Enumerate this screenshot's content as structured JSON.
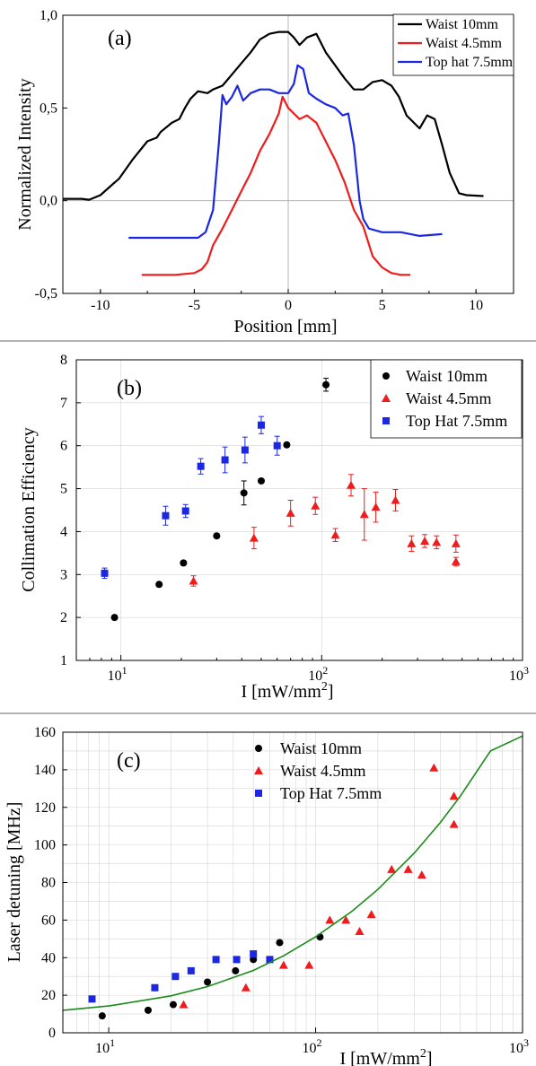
{
  "colors": {
    "black": "#000000",
    "red": "#ee1c1c",
    "blue": "#1b27e0",
    "green": "#1a8a1a"
  },
  "chart_data": [
    {
      "type": "line",
      "panel_label": "(a)",
      "xlabel": "Position [mm]",
      "ylabel": "Normalized Intensity",
      "xlim": [
        -12,
        12
      ],
      "ylim": [
        -0.5,
        1.0
      ],
      "xticks": [
        -10,
        -5,
        0,
        5,
        10
      ],
      "xtick_labels": [
        "-10",
        "-5",
        "0",
        "5",
        "10"
      ],
      "yticks": [
        -0.5,
        0.0,
        0.5,
        1.0
      ],
      "ytick_labels": [
        "-0,5",
        "0,0",
        "0,5",
        "1,0"
      ],
      "legend_position": "top-right",
      "series": [
        {
          "name": "Waist 10mm",
          "color": "#000000",
          "x": [
            -12,
            -11,
            -10.6,
            -10,
            -9,
            -8.3,
            -7.5,
            -7,
            -6.8,
            -6.2,
            -5.8,
            -5.5,
            -5.2,
            -4.8,
            -4.3,
            -4,
            -3.5,
            -3,
            -2.5,
            -2,
            -1.5,
            -1,
            -0.5,
            0,
            0.3,
            0.6,
            1,
            1.5,
            2,
            2.5,
            3,
            3.5,
            4,
            4.5,
            5,
            5.5,
            5.9,
            6.3,
            6.7,
            7,
            7.4,
            7.8,
            8.2,
            8.6,
            9.1,
            9.5,
            10.4
          ],
          "y": [
            0.01,
            0.01,
            0.005,
            0.03,
            0.12,
            0.22,
            0.32,
            0.34,
            0.37,
            0.42,
            0.44,
            0.5,
            0.55,
            0.59,
            0.58,
            0.6,
            0.62,
            0.68,
            0.74,
            0.8,
            0.87,
            0.9,
            0.91,
            0.91,
            0.88,
            0.84,
            0.88,
            0.9,
            0.8,
            0.73,
            0.66,
            0.6,
            0.6,
            0.64,
            0.65,
            0.62,
            0.56,
            0.46,
            0.42,
            0.39,
            0.46,
            0.44,
            0.3,
            0.15,
            0.04,
            0.03,
            0.025
          ]
        },
        {
          "name": "Waist 4.5mm",
          "color": "#ee1c1c",
          "x": [
            -7.8,
            -6,
            -5,
            -4.6,
            -4.3,
            -4,
            -3.5,
            -3,
            -2.5,
            -2,
            -1.5,
            -1,
            -0.5,
            -0.3,
            0,
            0.3,
            0.6,
            1,
            1.5,
            2,
            2.5,
            3,
            3.5,
            4,
            4.5,
            5,
            5.5,
            6,
            6.5
          ],
          "y": [
            -0.4,
            -0.4,
            -0.39,
            -0.37,
            -0.33,
            -0.24,
            -0.15,
            -0.05,
            0.05,
            0.15,
            0.27,
            0.36,
            0.47,
            0.56,
            0.5,
            0.47,
            0.44,
            0.46,
            0.42,
            0.32,
            0.22,
            0.1,
            -0.05,
            -0.14,
            -0.3,
            -0.36,
            -0.39,
            -0.4,
            -0.4
          ]
        },
        {
          "name": "Top hat 7.5mm",
          "color": "#1b27e0",
          "x": [
            -8.5,
            -4.8,
            -4.4,
            -4,
            -3.7,
            -3.5,
            -3.3,
            -3.0,
            -2.7,
            -2.4,
            -2.0,
            -1.5,
            -1.0,
            -0.5,
            0,
            0.3,
            0.5,
            0.8,
            1.1,
            1.5,
            2.0,
            2.5,
            2.9,
            3.2,
            3.5,
            3.8,
            4.0,
            4.3,
            5,
            6,
            7,
            8.2
          ],
          "y": [
            -0.2,
            -0.2,
            -0.17,
            -0.05,
            0.3,
            0.57,
            0.52,
            0.56,
            0.62,
            0.54,
            0.58,
            0.6,
            0.6,
            0.58,
            0.58,
            0.63,
            0.73,
            0.71,
            0.58,
            0.55,
            0.52,
            0.5,
            0.46,
            0.47,
            0.3,
            0.0,
            -0.1,
            -0.15,
            -0.17,
            -0.17,
            -0.19,
            -0.18
          ]
        }
      ]
    },
    {
      "type": "scatter",
      "panel_label": "(b)",
      "xlabel_base": "I [mW/mm",
      "xlabel_sup": "2",
      "xlabel_end": "]",
      "ylabel": "Collimation Efficiency",
      "xscale": "log",
      "xlim": [
        6,
        1000
      ],
      "ylim": [
        1,
        8
      ],
      "xticks": [
        10,
        100,
        1000
      ],
      "xtick_base": "10",
      "xtick_exps": [
        "1",
        "2",
        "3"
      ],
      "yticks": [
        1,
        2,
        3,
        4,
        5,
        6,
        7,
        8
      ],
      "ytick_labels": [
        "1",
        "2",
        "3",
        "4",
        "5",
        "6",
        "7",
        "8"
      ],
      "legend_position": "top-right",
      "series": [
        {
          "name": "Waist 10mm",
          "marker": "circle",
          "color": "#000000",
          "x": [
            9.3,
            15.5,
            20.5,
            30,
            41,
            50,
            67,
            105
          ],
          "y": [
            2.0,
            2.77,
            3.27,
            3.9,
            4.9,
            5.18,
            6.02,
            7.42
          ],
          "err": [
            0.05,
            0.05,
            0.05,
            0.05,
            0.28,
            0.05,
            0.05,
            0.15
          ]
        },
        {
          "name": "Waist 4.5mm",
          "marker": "triangle",
          "color": "#ee1c1c",
          "x": [
            23,
            46,
            70,
            93,
            117,
            140,
            163,
            186,
            233,
            280,
            326,
            373,
            466,
            466
          ],
          "y": [
            2.85,
            3.85,
            4.43,
            4.6,
            3.92,
            5.08,
            4.4,
            4.57,
            4.73,
            3.72,
            3.78,
            3.75,
            3.3,
            3.72
          ],
          "err": [
            0.12,
            0.25,
            0.3,
            0.2,
            0.15,
            0.25,
            0.6,
            0.35,
            0.25,
            0.18,
            0.15,
            0.15,
            0.1,
            0.2
          ]
        },
        {
          "name": "Top Hat 7.5mm",
          "marker": "square",
          "color": "#1b27e0",
          "x": [
            8.3,
            16.7,
            21,
            25,
            33,
            41.5,
            50,
            60
          ],
          "y": [
            3.03,
            4.37,
            4.48,
            5.52,
            5.67,
            5.9,
            6.48,
            6.0
          ],
          "err": [
            0.12,
            0.22,
            0.15,
            0.18,
            0.3,
            0.3,
            0.2,
            0.22
          ]
        }
      ]
    },
    {
      "type": "scatter",
      "panel_label": "(c)",
      "xlabel_base": "I [mW/mm",
      "xlabel_sup": "2",
      "xlabel_end": "]",
      "ylabel": "Laser detuning [MHz]",
      "xscale": "log",
      "xlim": [
        6,
        1000
      ],
      "ylim": [
        0,
        160
      ],
      "xticks": [
        10,
        100,
        1000
      ],
      "xtick_base": "10",
      "xtick_exps": [
        "1",
        "2",
        "3"
      ],
      "yticks": [
        0,
        20,
        40,
        60,
        80,
        100,
        120,
        140,
        160
      ],
      "ytick_labels": [
        "0",
        "20",
        "40",
        "60",
        "80",
        "100",
        "120",
        "140",
        "160"
      ],
      "legend_position": "top-left",
      "series": [
        {
          "name": "Waist 10mm",
          "marker": "circle",
          "color": "#000000",
          "x": [
            9.3,
            15.5,
            20.5,
            30,
            41,
            50,
            67,
            105
          ],
          "y": [
            9,
            12,
            15,
            27,
            33,
            39,
            48,
            51
          ]
        },
        {
          "name": "Waist 4.5mm",
          "marker": "triangle",
          "color": "#ee1c1c",
          "x": [
            23,
            46,
            70,
            93,
            117,
            140,
            163,
            186,
            233,
            280,
            326,
            373,
            466,
            466
          ],
          "y": [
            15,
            24,
            36,
            36,
            60,
            60,
            54,
            63,
            87,
            87,
            84,
            141,
            126,
            111
          ]
        },
        {
          "name": "Top Hat 7.5mm",
          "marker": "square",
          "color": "#1b27e0",
          "x": [
            8.3,
            16.7,
            21,
            25,
            33,
            41.5,
            50,
            60
          ],
          "y": [
            18,
            24,
            30,
            33,
            39,
            39,
            42,
            39
          ]
        },
        {
          "fit": true,
          "color": "#1a8a1a",
          "x": [
            6,
            10,
            20,
            30,
            50,
            70,
            100,
            150,
            200,
            300,
            400,
            500,
            700,
            1000
          ],
          "y": [
            12,
            14.3,
            19.7,
            24.6,
            33.2,
            41,
            51.1,
            64.7,
            76.3,
            95.7,
            111.8,
            125.9,
            150,
            158
          ]
        }
      ]
    }
  ]
}
